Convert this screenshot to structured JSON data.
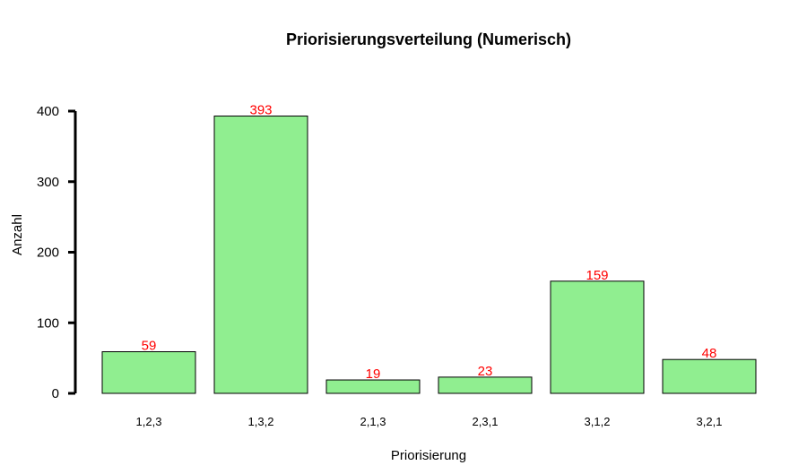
{
  "chart_data": {
    "type": "bar",
    "title": "Priorisierungsverteilung (Numerisch)",
    "xlabel": "Priorisierung",
    "ylabel": "Anzahl",
    "categories": [
      "1,2,3",
      "1,3,2",
      "2,1,3",
      "2,3,1",
      "3,1,2",
      "3,2,1"
    ],
    "values": [
      59,
      393,
      19,
      23,
      159,
      48
    ],
    "ylim": [
      0,
      400
    ],
    "yticks": [
      0,
      100,
      200,
      300,
      400
    ],
    "grid": false,
    "bar_color": "#90EE90",
    "bar_edge_color": "#000000",
    "value_label_color": "#FF0000"
  }
}
